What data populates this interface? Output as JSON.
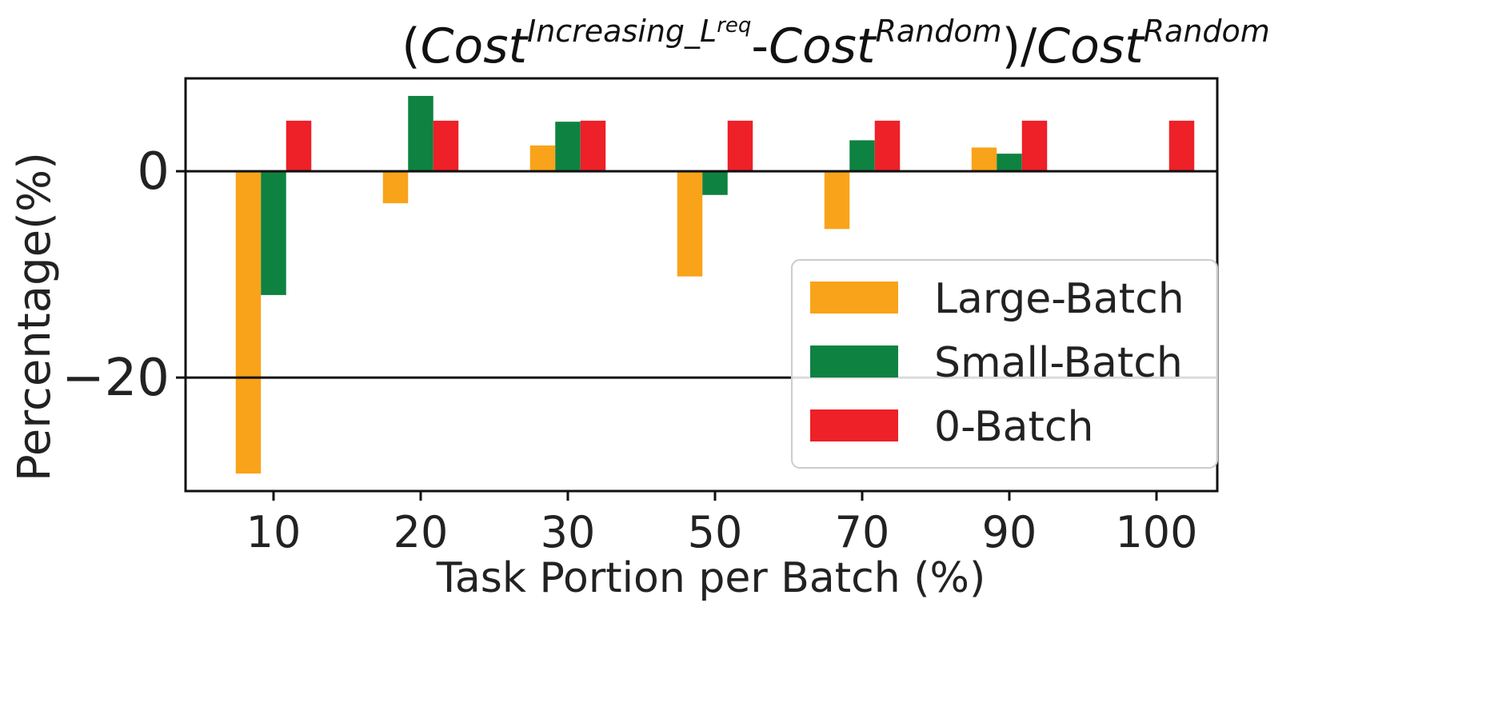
{
  "chart_data": {
    "type": "bar",
    "title": {
      "open_paren": "(",
      "cost1": "Cost",
      "sup1": "Increasing_L",
      "sup1_sup": "req",
      "dash": "-",
      "cost2": "Cost",
      "sup2": "Random",
      "close_paren_slash": ")/",
      "cost3": "Cost",
      "sup3": "Random"
    },
    "xlabel": "Task Portion per Batch (%)",
    "ylabel": "Percentage(%)",
    "categories": [
      "10",
      "20",
      "30",
      "50",
      "70",
      "90",
      "100"
    ],
    "ylim": [
      -31,
      9
    ],
    "yticks": [
      {
        "value": 0,
        "label": "0"
      },
      {
        "value": -20,
        "label": "−20"
      }
    ],
    "hlines": [
      0,
      -20
    ],
    "series": [
      {
        "name": "Large-Batch",
        "color": "#F9A31A",
        "values": [
          -29.3,
          -3.1,
          2.5,
          -10.2,
          -5.6,
          2.3,
          0
        ]
      },
      {
        "name": "Small-Batch",
        "color": "#0E8241",
        "values": [
          -12.0,
          7.3,
          4.8,
          -2.3,
          3.0,
          1.7,
          0
        ]
      },
      {
        "name": "0-Batch",
        "color": "#EE2028",
        "values": [
          4.9,
          4.9,
          4.9,
          4.9,
          4.9,
          4.9,
          4.9
        ]
      }
    ],
    "legend": {
      "position": "lower-right"
    }
  }
}
